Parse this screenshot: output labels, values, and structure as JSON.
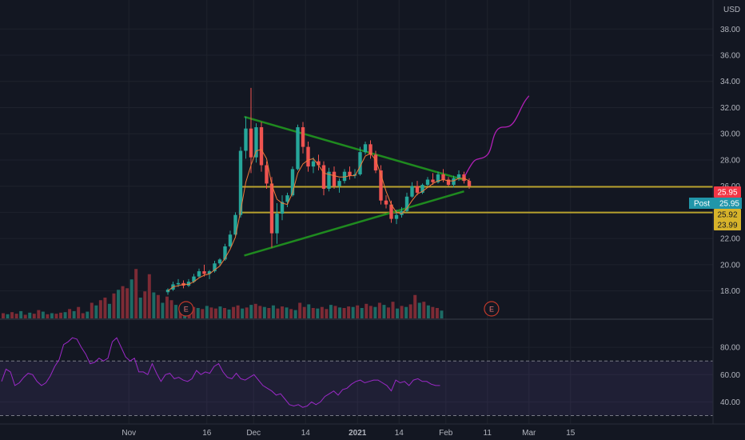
{
  "chart_data": {
    "type": "candlestick",
    "currency_label": "USD",
    "price_axis": {
      "range": [
        15.9,
        39.3
      ],
      "ticks": [
        "18.00",
        "20.00",
        "22.00",
        "24.00",
        "26.00",
        "28.00",
        "30.00",
        "32.00",
        "34.00",
        "36.00",
        "38.00"
      ]
    },
    "time_axis": {
      "ticks": [
        {
          "label": "Nov",
          "bar": -7.5
        },
        {
          "label": "16",
          "bar": 7.5
        },
        {
          "label": "Dec",
          "bar": 16.5
        },
        {
          "label": "14",
          "bar": 26.5
        },
        {
          "label": "2021",
          "bar": 36.5
        },
        {
          "label": "14",
          "bar": 44.5
        },
        {
          "label": "Feb",
          "bar": 53.5
        },
        {
          "label": "11",
          "bar": 61.5
        },
        {
          "label": "Mar",
          "bar": 69.5
        },
        {
          "label": "15",
          "bar": 77.5
        }
      ]
    },
    "candles": [
      [
        17.9,
        18.2,
        17.7,
        18.1
      ],
      [
        18.1,
        18.7,
        18.0,
        18.5
      ],
      [
        18.5,
        18.9,
        18.3,
        18.6
      ],
      [
        18.6,
        18.8,
        18.2,
        18.4
      ],
      [
        18.4,
        18.9,
        18.3,
        18.7
      ],
      [
        18.7,
        19.3,
        18.6,
        19.1
      ],
      [
        19.1,
        19.7,
        19.0,
        19.5
      ],
      [
        19.5,
        20.0,
        19.1,
        19.3
      ],
      [
        19.3,
        19.6,
        18.9,
        19.5
      ],
      [
        19.5,
        20.3,
        19.4,
        20.1
      ],
      [
        20.1,
        20.5,
        19.9,
        20.4
      ],
      [
        20.4,
        21.6,
        20.3,
        21.4
      ],
      [
        21.4,
        22.6,
        21.3,
        22.3
      ],
      [
        22.3,
        24.0,
        22.2,
        23.8
      ],
      [
        23.8,
        29.0,
        23.6,
        28.7
      ],
      [
        28.7,
        31.3,
        28.1,
        30.4
      ],
      [
        30.4,
        33.5,
        27.0,
        28.2
      ],
      [
        28.2,
        30.8,
        27.8,
        30.5
      ],
      [
        30.5,
        30.9,
        27.1,
        27.6
      ],
      [
        27.6,
        27.9,
        25.8,
        26.2
      ],
      [
        26.2,
        26.7,
        21.3,
        22.4
      ],
      [
        22.4,
        24.7,
        21.6,
        23.9
      ],
      [
        23.9,
        25.3,
        23.4,
        24.8
      ],
      [
        24.8,
        25.5,
        24.4,
        25.3
      ],
      [
        25.3,
        27.5,
        25.2,
        27.3
      ],
      [
        27.3,
        30.7,
        27.2,
        30.5
      ],
      [
        30.5,
        30.9,
        28.5,
        29.0
      ],
      [
        29.0,
        29.4,
        27.1,
        27.5
      ],
      [
        27.5,
        28.2,
        27.0,
        27.9
      ],
      [
        27.9,
        28.4,
        27.2,
        27.6
      ],
      [
        27.6,
        27.9,
        25.3,
        25.8
      ],
      [
        25.8,
        27.4,
        25.6,
        27.1
      ],
      [
        27.1,
        27.5,
        25.8,
        26.0
      ],
      [
        26.0,
        26.6,
        25.5,
        26.4
      ],
      [
        26.4,
        27.3,
        26.2,
        27.1
      ],
      [
        27.1,
        27.5,
        26.5,
        26.8
      ],
      [
        26.8,
        27.3,
        26.6,
        26.9
      ],
      [
        26.9,
        29.0,
        26.8,
        28.6
      ],
      [
        28.6,
        29.4,
        28.4,
        29.2
      ],
      [
        29.2,
        29.5,
        28.1,
        28.4
      ],
      [
        28.4,
        28.7,
        27.0,
        27.2
      ],
      [
        27.2,
        27.6,
        24.6,
        24.9
      ],
      [
        24.9,
        25.3,
        24.3,
        24.6
      ],
      [
        24.6,
        24.9,
        23.2,
        23.5
      ],
      [
        23.5,
        24.2,
        23.1,
        23.8
      ],
      [
        23.8,
        24.4,
        23.6,
        24.1
      ],
      [
        24.1,
        25.5,
        24.0,
        25.2
      ],
      [
        25.2,
        26.3,
        25.1,
        26.0
      ],
      [
        26.0,
        26.4,
        25.3,
        25.5
      ],
      [
        25.5,
        26.2,
        25.4,
        26.1
      ],
      [
        26.1,
        26.7,
        26.0,
        26.5
      ],
      [
        26.5,
        27.0,
        26.1,
        26.3
      ],
      [
        26.3,
        27.1,
        26.2,
        26.9
      ],
      [
        26.9,
        27.3,
        26.3,
        26.5
      ],
      [
        26.5,
        26.7,
        26.0,
        26.1
      ],
      [
        26.1,
        26.8,
        25.9,
        26.6
      ],
      [
        26.6,
        27.2,
        26.4,
        26.9
      ],
      [
        26.9,
        27.1,
        26.2,
        26.4
      ],
      [
        26.4,
        26.6,
        25.8,
        26.0
      ]
    ],
    "volume_relative": [
      0.1,
      0.08,
      0.12,
      0.09,
      0.14,
      0.07,
      0.11,
      0.09,
      0.16,
      0.13,
      0.08,
      0.1,
      0.09,
      0.11,
      0.12,
      0.18,
      0.14,
      0.22,
      0.1,
      0.13,
      0.3,
      0.25,
      0.35,
      0.4,
      0.28,
      0.48,
      0.55,
      0.62,
      0.58,
      0.75,
      0.95,
      0.4,
      0.52,
      0.85,
      0.5,
      0.45,
      0.3,
      0.42,
      0.35,
      0.26,
      0.22,
      0.3,
      0.25,
      0.22,
      0.2,
      0.18,
      0.24,
      0.21,
      0.19,
      0.23,
      0.2,
      0.17,
      0.22,
      0.25,
      0.19,
      0.21,
      0.26,
      0.28,
      0.24,
      0.22,
      0.2,
      0.25,
      0.19,
      0.23,
      0.21,
      0.18,
      0.16,
      0.3,
      0.22,
      0.27,
      0.2,
      0.19,
      0.22,
      0.18,
      0.26,
      0.24,
      0.21,
      0.2,
      0.23,
      0.22,
      0.25,
      0.2,
      0.28,
      0.24,
      0.22,
      0.3,
      0.26,
      0.21,
      0.32,
      0.19,
      0.24,
      0.22,
      0.27,
      0.45,
      0.3,
      0.32,
      0.25,
      0.22,
      0.2,
      0.15
    ],
    "moving_average": [
      18.0,
      18.3,
      18.4,
      18.5,
      18.5,
      18.7,
      19.0,
      19.2,
      19.3,
      19.6,
      19.9,
      20.5,
      21.2,
      22.1,
      24.1,
      26.3,
      27.6,
      28.7,
      28.8,
      28.1,
      26.1,
      25.0,
      24.7,
      24.6,
      25.5,
      27.0,
      27.7,
      28.0,
      28.1,
      27.6,
      27.0,
      26.9,
      26.8,
      26.7,
      26.7,
      26.8,
      26.8,
      27.5,
      28.3,
      28.5,
      28.0,
      26.9,
      25.6,
      24.6,
      24.0,
      23.9,
      24.3,
      24.9,
      25.4,
      25.6,
      25.9,
      26.2,
      26.4,
      26.5,
      26.4,
      26.4,
      26.6,
      26.6,
      26.4
    ],
    "trendlines": {
      "resistance": {
        "from": [
          14.7,
          31.3
        ],
        "to": [
          56.8,
          26.5
        ],
        "color": "#1f8a1f"
      },
      "support": {
        "from": [
          14.7,
          20.7
        ],
        "to": [
          57.0,
          25.6
        ],
        "color": "#1f8a1f"
      }
    },
    "horizontal_levels": [
      {
        "price": 25.95,
        "from_bar": 13.8,
        "color": "#b8a12e"
      },
      {
        "price": 23.99,
        "from_bar": 14.2,
        "color": "#b8a12e"
      }
    ],
    "projection_path": {
      "color": "#b11fb6",
      "points": [
        [
          57.2,
          26.8
        ],
        [
          58,
          27.4
        ],
        [
          59,
          28.0
        ],
        [
          60,
          28.1
        ],
        [
          61,
          28.2
        ],
        [
          62,
          28.6
        ],
        [
          62.8,
          30.0
        ],
        [
          63.8,
          30.5
        ],
        [
          65,
          30.5
        ],
        [
          66,
          30.6
        ],
        [
          67,
          31.1
        ],
        [
          68.5,
          32.4
        ],
        [
          69.5,
          32.9
        ]
      ]
    },
    "earnings_markers": [
      {
        "label": "E",
        "bar": 3.5
      },
      {
        "label": "E",
        "bar": 62.3
      }
    ],
    "price_labels": [
      {
        "text": "25.95",
        "price": 25.95,
        "color": "#f23645",
        "text_color": "#ffffff"
      },
      {
        "text": "25.92",
        "price": 25.92,
        "color": "#d7b32a",
        "text_color": "#131722"
      },
      {
        "text": "23.99",
        "price": 23.99,
        "color": "#d7b32a",
        "text_color": "#131722"
      }
    ],
    "position_tag": {
      "label": "Post",
      "value": "25.95",
      "color": "#2196a9"
    },
    "rsi": {
      "ticks": [
        "40.00",
        "60.00",
        "80.00"
      ],
      "range": [
        25,
        100
      ],
      "band": [
        30,
        70
      ],
      "color": "#9b29c7",
      "values": [
        55,
        64,
        62,
        52,
        54,
        58,
        61,
        60,
        55,
        52,
        54,
        59,
        66,
        71,
        82,
        84,
        87,
        86,
        80,
        75,
        68,
        69,
        72,
        70,
        72,
        84,
        87,
        80,
        73,
        70,
        72,
        62,
        62,
        60,
        68,
        61,
        55,
        60,
        61,
        57,
        58,
        56,
        55,
        57,
        63,
        60,
        62,
        61,
        66,
        68,
        62,
        58,
        57,
        61,
        57,
        56,
        58,
        60,
        56,
        52,
        50,
        48,
        45,
        46,
        42,
        38,
        37,
        38,
        36,
        37,
        40,
        38,
        40,
        44,
        46,
        48,
        45,
        49,
        50,
        53,
        55,
        56,
        54,
        55,
        56,
        56,
        54,
        52,
        48,
        56,
        54,
        55,
        52,
        56,
        57,
        55,
        55,
        53,
        52,
        52
      ]
    }
  }
}
